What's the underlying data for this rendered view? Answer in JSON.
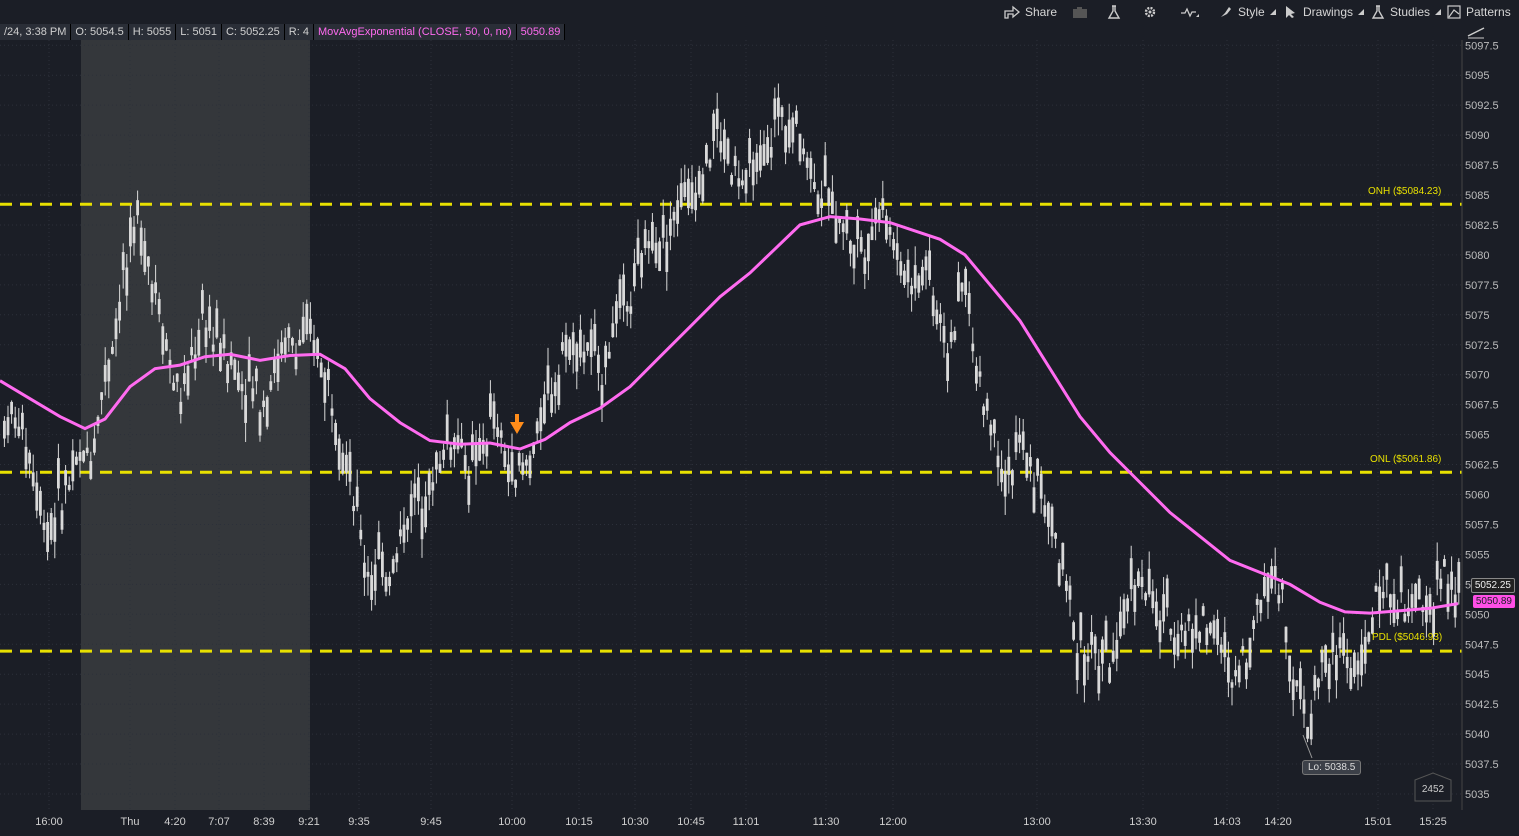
{
  "toolbar": {
    "share_label": "Share",
    "style_label": "Style",
    "drawings_label": "Drawings",
    "studies_label": "Studies",
    "patterns_label": "Patterns"
  },
  "infobar": {
    "date": "/24, 3:38 PM",
    "open": "O: 5054.5",
    "high": "H: 5055",
    "low": "L: 5051",
    "close": "C: 5052.25",
    "range": "R: 4",
    "study": "MovAvgExponential (CLOSE, 50, 0, no)",
    "study_value": "5050.89"
  },
  "price_labels": {
    "last": "5052.25",
    "ema": "5050.89"
  },
  "levels": {
    "onh": "ONH ($5084.23)",
    "onl": "ONL ($5061.86)",
    "pdl": "PDL ($5046.93)"
  },
  "low_tag": "Lo: 5038.5",
  "volume_badge": "2452",
  "colors": {
    "background": "#1b1e26",
    "candle": "#d9d9d9",
    "ema": "#ff6bf0",
    "level": "#e8e000",
    "marker": "#ff8c1a",
    "session_shade": "#34373b"
  },
  "chart_data": {
    "type": "candlestick",
    "y_axis": {
      "min": 5035,
      "max": 5097.5,
      "ticks": [
        5035,
        5037.5,
        5040,
        5042.5,
        5045,
        5047.5,
        5050,
        5052.5,
        5055,
        5057.5,
        5060,
        5062.5,
        5065,
        5067.5,
        5070,
        5072.5,
        5075,
        5077.5,
        5080,
        5082.5,
        5085,
        5087.5,
        5090,
        5092.5,
        5095,
        5097.5
      ]
    },
    "x_ticks": [
      "16:00",
      "Thu",
      "4:20",
      "7:07",
      "8:39",
      "9:21",
      "9:35",
      "9:45",
      "10:00",
      "10:15",
      "10:30",
      "10:45",
      "11:01",
      "11:30",
      "12:00",
      "13:00",
      "13:30",
      "14:03",
      "14:20",
      "15:01",
      "15:25"
    ],
    "levels": [
      {
        "name": "ONH",
        "value": 5084.23
      },
      {
        "name": "ONL",
        "value": 5061.86
      },
      {
        "name": "PDL",
        "value": 5046.93
      }
    ],
    "series": [
      {
        "name": "MovAvgExponential (CLOSE, 50, 0, no)",
        "last_value": 5050.89
      }
    ],
    "last_close": 5052.25,
    "session_low": 5038.5,
    "grid": true
  }
}
